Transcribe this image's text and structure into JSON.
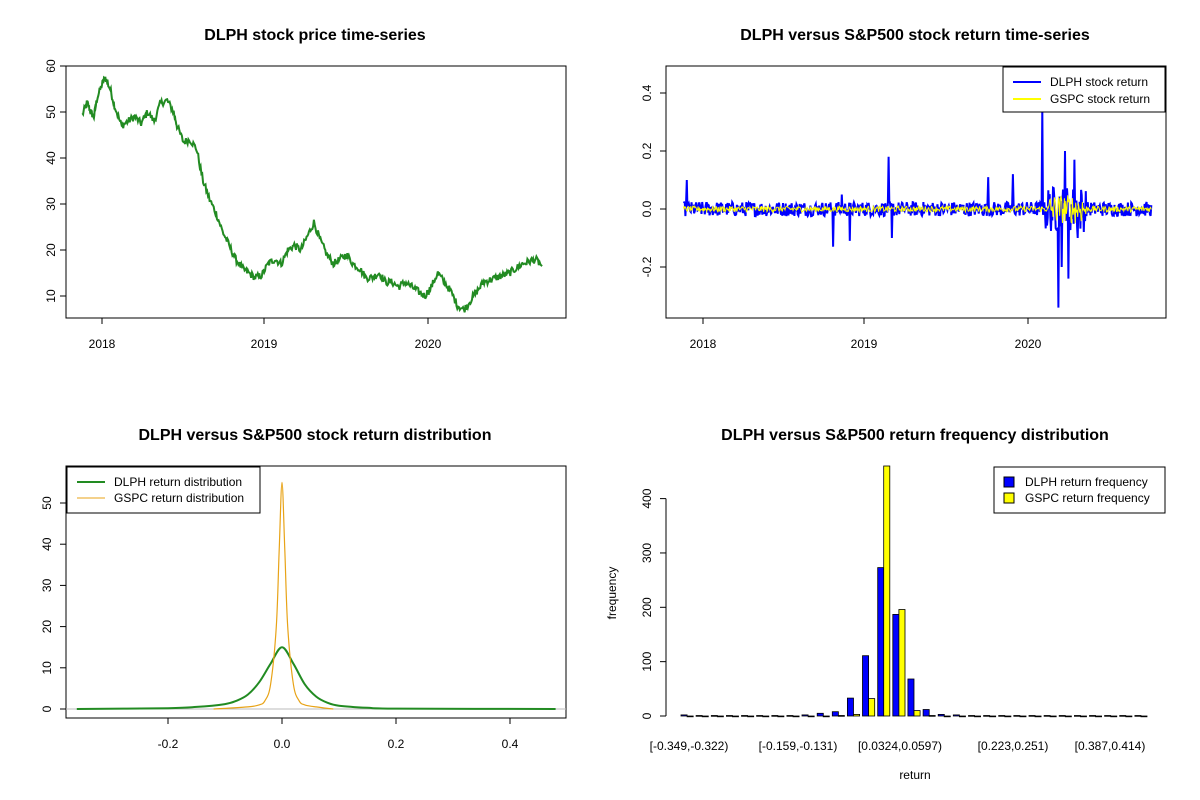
{
  "chart_data": [
    {
      "id": "p1",
      "type": "line",
      "title": "DLPH stock price time-series",
      "xlabel": "",
      "ylabel": "",
      "x_ticks": [
        "2018",
        "2019",
        "2020"
      ],
      "y_ticks": [
        10,
        20,
        30,
        40,
        50,
        60
      ],
      "xlim": [
        2017.85,
        2020.75
      ],
      "ylim": [
        5,
        60
      ],
      "series": [
        {
          "name": "DLPH price",
          "color": "#228B22",
          "x": [
            2017.88,
            2017.91,
            2017.93,
            2017.95,
            2017.97,
            2018.0,
            2018.02,
            2018.05,
            2018.08,
            2018.12,
            2018.16,
            2018.2,
            2018.24,
            2018.28,
            2018.32,
            2018.36,
            2018.4,
            2018.44,
            2018.46,
            2018.5,
            2018.54,
            2018.58,
            2018.62,
            2018.66,
            2018.7,
            2018.74,
            2018.78,
            2018.82,
            2018.86,
            2018.9,
            2018.94,
            2018.98,
            2019.02,
            2019.06,
            2019.1,
            2019.14,
            2019.18,
            2019.22,
            2019.26,
            2019.3,
            2019.34,
            2019.38,
            2019.42,
            2019.46,
            2019.5,
            2019.54,
            2019.58,
            2019.62,
            2019.66,
            2019.7,
            2019.74,
            2019.78,
            2019.82,
            2019.86,
            2019.9,
            2019.94,
            2019.98,
            2020.02,
            2020.06,
            2020.1,
            2020.14,
            2020.18,
            2020.22,
            2020.26,
            2020.3,
            2020.34,
            2020.38,
            2020.42,
            2020.46,
            2020.5,
            2020.54,
            2020.58,
            2020.62,
            2020.66,
            2020.7
          ],
          "values": [
            49.5,
            52,
            50,
            49,
            53,
            56,
            57.5,
            55,
            51,
            47,
            48,
            49,
            47.5,
            50,
            48,
            52,
            52.5,
            50,
            47,
            43.5,
            44,
            42,
            35,
            31,
            28,
            24,
            21,
            18,
            16,
            15,
            14,
            14.5,
            17,
            18,
            17,
            20,
            21,
            20,
            23,
            26,
            22,
            19,
            17,
            18,
            19,
            17,
            16,
            14,
            14,
            15,
            13,
            13,
            12,
            13,
            12,
            11,
            10,
            12,
            15,
            13,
            11,
            8,
            7,
            9,
            11,
            13,
            13.5,
            14,
            14.5,
            15,
            16,
            17,
            17.5,
            18,
            16.5
          ]
        }
      ]
    },
    {
      "id": "p2",
      "type": "line",
      "title": "DLPH versus S&P500 stock return time-series",
      "xlabel": "",
      "ylabel": "",
      "x_ticks": [
        "2018",
        "2019",
        "2020"
      ],
      "y_ticks": [
        -0.2,
        0.0,
        0.2,
        0.4
      ],
      "y_tick_labels": [
        "-0.2",
        "0.0",
        "0.2",
        "0.4"
      ],
      "xlim": [
        2017.85,
        2020.75
      ],
      "ylim": [
        -0.37,
        0.5
      ],
      "legend": {
        "position": "top-right",
        "entries": [
          "DLPH stock return",
          "GSPC stock return"
        ]
      },
      "series": [
        {
          "name": "DLPH stock return",
          "color": "#0000FF"
        },
        {
          "name": "GSPC stock return",
          "color": "#FFFF00"
        }
      ],
      "events": [
        {
          "x": 2017.9,
          "dlph": 0.1
        },
        {
          "x": 2018.8,
          "dlph": -0.13
        },
        {
          "x": 2018.85,
          "dlph": 0.05
        },
        {
          "x": 2018.9,
          "dlph": -0.11
        },
        {
          "x": 2019.14,
          "dlph": 0.18
        },
        {
          "x": 2019.16,
          "dlph": -0.1
        },
        {
          "x": 2019.75,
          "dlph": 0.11
        },
        {
          "x": 2019.9,
          "dlph": 0.12
        },
        {
          "x": 2020.08,
          "dlph": 0.35
        },
        {
          "x": 2020.18,
          "dlph": -0.34
        },
        {
          "x": 2020.2,
          "dlph": -0.2
        },
        {
          "x": 2020.22,
          "dlph": 0.2
        },
        {
          "x": 2020.24,
          "dlph": -0.24
        },
        {
          "x": 2020.28,
          "dlph": 0.17
        },
        {
          "x": 2020.3,
          "dlph": -0.1
        }
      ]
    },
    {
      "id": "p3",
      "type": "line",
      "title": "DLPH versus S&P500 stock return distribution",
      "xlabel": "",
      "ylabel": "",
      "x_ticks": [
        -0.2,
        0.0,
        0.2,
        0.4
      ],
      "x_tick_labels": [
        "-0.2",
        "0.0",
        "0.2",
        "0.4"
      ],
      "y_ticks": [
        0,
        10,
        20,
        30,
        40,
        50
      ],
      "xlim": [
        -0.37,
        0.5
      ],
      "ylim": [
        -1.5,
        58
      ],
      "legend": {
        "position": "top-left",
        "entries": [
          "DLPH return distribution",
          "GSPC return distribution"
        ]
      },
      "series": [
        {
          "name": "DLPH return distribution",
          "color": "#228B22",
          "x": [
            -0.36,
            -0.2,
            -0.15,
            -0.1,
            -0.08,
            -0.06,
            -0.04,
            -0.02,
            0,
            0.02,
            0.04,
            0.06,
            0.08,
            0.1,
            0.15,
            0.2,
            0.48
          ],
          "values": [
            0,
            0.2,
            0.5,
            1.2,
            2,
            3.5,
            6.5,
            11,
            15,
            11,
            6,
            3,
            1.5,
            0.8,
            0.3,
            0.1,
            0
          ]
        },
        {
          "name": "GSPC return distribution",
          "color": "#E8A317",
          "x": [
            -0.12,
            -0.06,
            -0.04,
            -0.03,
            -0.02,
            -0.01,
            -0.005,
            0,
            0.005,
            0.01,
            0.02,
            0.03,
            0.04,
            0.06,
            0.09
          ],
          "values": [
            0,
            0.5,
            1,
            2,
            6,
            20,
            38,
            55,
            38,
            20,
            6,
            2,
            1,
            0.5,
            0
          ]
        }
      ]
    },
    {
      "id": "p4",
      "type": "bar",
      "title": "DLPH versus S&P500 return frequency distribution",
      "xlabel": "return",
      "ylabel": "frequency",
      "x_tick_labels": [
        "[-0.349,-0.322)",
        "[-0.159,-0.131)",
        "[0.0324,0.0597)",
        "[0.223,0.251)",
        "[0.387,0.414)"
      ],
      "y_ticks": [
        0,
        100,
        200,
        300,
        400
      ],
      "ylim": [
        0,
        460
      ],
      "legend": {
        "position": "top-right",
        "entries": [
          "DLPH return frequency",
          "GSPC return frequency"
        ]
      },
      "series": [
        {
          "name": "DLPH return frequency",
          "color": "#0000FF",
          "values": [
            2,
            1,
            1,
            1,
            1,
            1,
            1,
            1,
            2,
            5,
            8,
            33,
            111,
            273,
            187,
            68,
            12,
            3,
            2,
            1,
            1,
            1,
            1,
            1,
            1,
            1,
            1,
            1,
            1,
            1,
            1
          ]
        },
        {
          "name": "GSPC return frequency",
          "color": "#FFFF00",
          "values": [
            0,
            0,
            0,
            0,
            0,
            0,
            0,
            0,
            0,
            0,
            1,
            3,
            32,
            460,
            196,
            10,
            1,
            0,
            0,
            0,
            0,
            0,
            0,
            0,
            0,
            0,
            0,
            0,
            0,
            0,
            0
          ]
        }
      ]
    }
  ]
}
